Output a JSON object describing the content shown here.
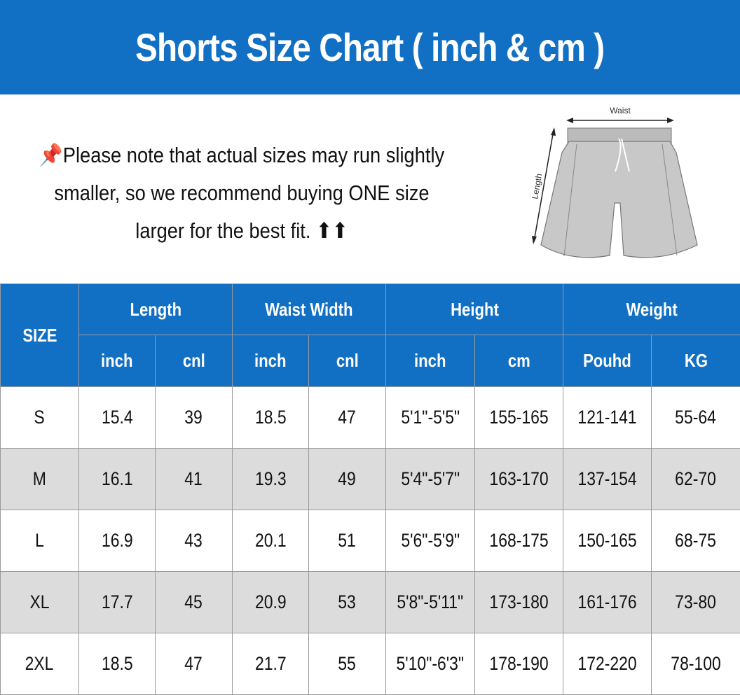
{
  "title": "Shorts Size Chart ( inch & cm )",
  "note": {
    "icon": "pushpin-icon",
    "text": "Please note that actual sizes may run slightly smaller, so we recommend buying ONE size larger for the best fit. ⬆⬆"
  },
  "diagram": {
    "waist_label": "Waist",
    "length_label": "Length"
  },
  "table": {
    "size_header": "SIZE",
    "groups": [
      "Length",
      "Waist Width",
      "Height",
      "Weight"
    ],
    "units": [
      "inch",
      "cnl",
      "inch",
      "cnl",
      "inch",
      "cm",
      "Pouhd",
      "KG"
    ],
    "rows": [
      [
        "S",
        "15.4",
        "39",
        "18.5",
        "47",
        "5'1\"-5'5\"",
        "155-165",
        "121-141",
        "55-64"
      ],
      [
        "M",
        "16.1",
        "41",
        "19.3",
        "49",
        "5'4\"-5'7\"",
        "163-170",
        "137-154",
        "62-70"
      ],
      [
        "L",
        "16.9",
        "43",
        "20.1",
        "51",
        "5'6\"-5'9\"",
        "168-175",
        "150-165",
        "68-75"
      ],
      [
        "XL",
        "17.7",
        "45",
        "20.9",
        "53",
        "5'8\"-5'11\"",
        "173-180",
        "161-176",
        "73-80"
      ],
      [
        "2XL",
        "18.5",
        "47",
        "21.7",
        "55",
        "5'10\"-6'3\"",
        "178-190",
        "172-220",
        "78-100"
      ]
    ]
  },
  "colors": {
    "header_blue": "#1170c4",
    "alt_row_gray": "#dcdcdc"
  }
}
